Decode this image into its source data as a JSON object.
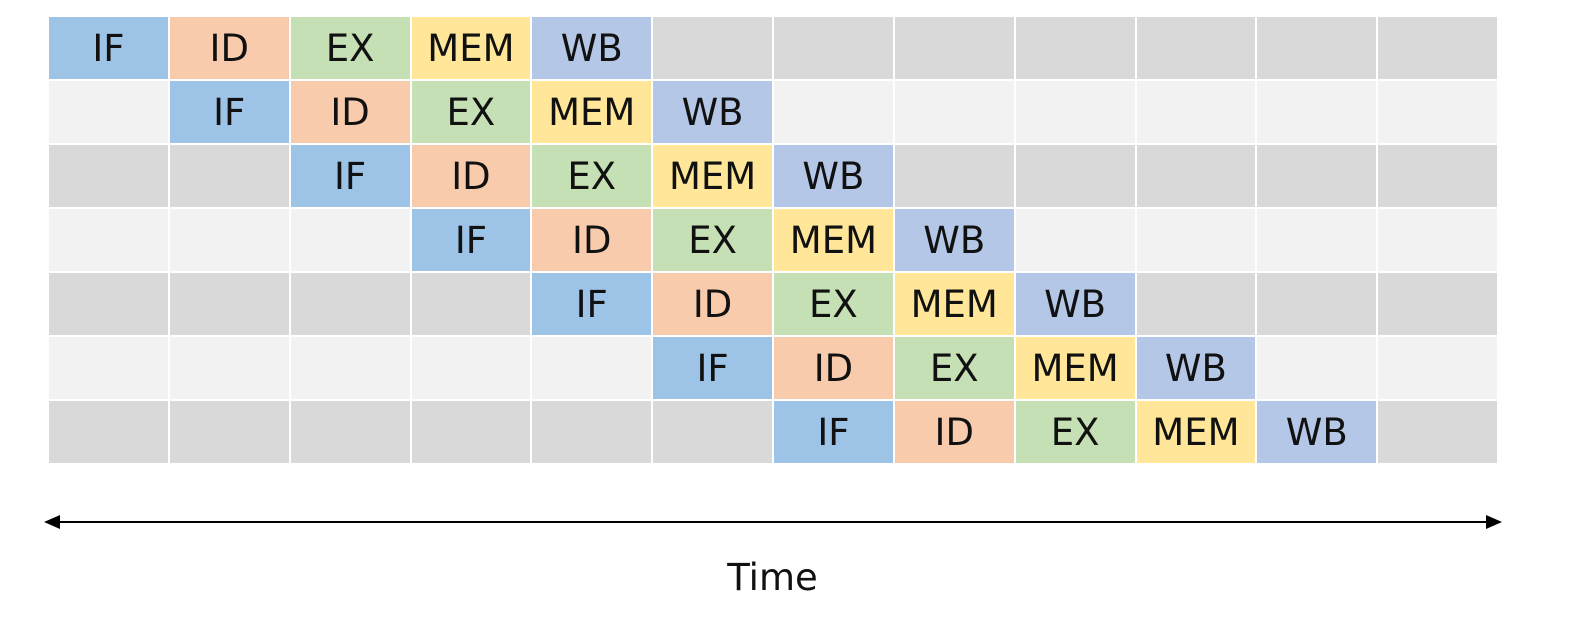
{
  "diagram": {
    "columns": 12,
    "stage_colors": {
      "IF": "#9dc3e6",
      "ID": "#f8cbad",
      "EX": "#c5e0b4",
      "MEM": "#ffe699",
      "WB": "#b4c7e7"
    },
    "row_background_colors": [
      "#d9d9d9",
      "#f2f2f2"
    ],
    "stages": [
      "IF",
      "ID",
      "EX",
      "MEM",
      "WB"
    ],
    "instructions": [
      {
        "start_cycle": 1
      },
      {
        "start_cycle": 2
      },
      {
        "start_cycle": 3
      },
      {
        "start_cycle": 4
      },
      {
        "start_cycle": 5
      },
      {
        "start_cycle": 6
      },
      {
        "start_cycle": 7
      }
    ]
  },
  "axis": {
    "label": "Time",
    "direction": "double-headed-arrow",
    "color": "#000000"
  }
}
